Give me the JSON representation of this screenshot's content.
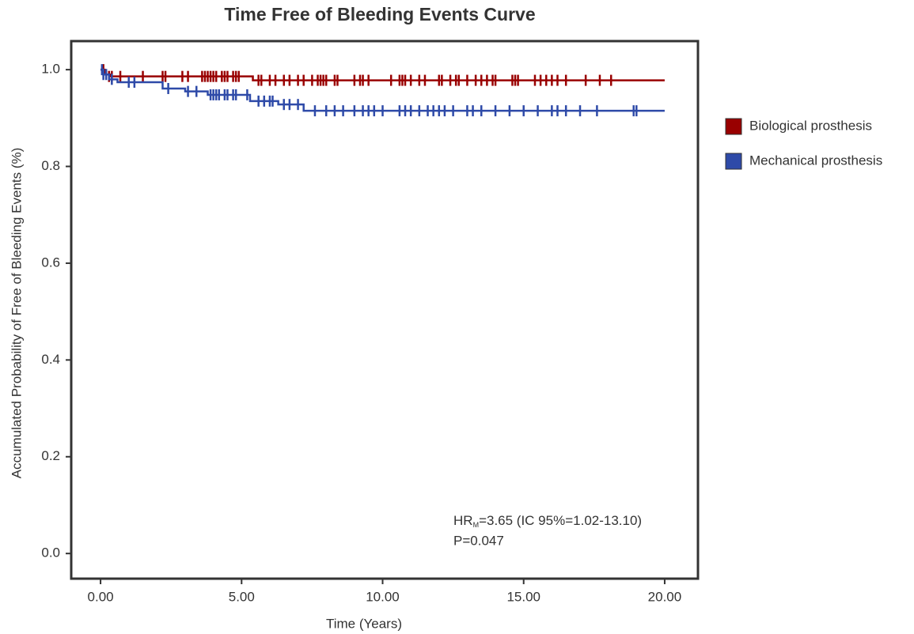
{
  "chart_data": {
    "type": "survival",
    "title": "Time Free of Bleeding Events Curve",
    "x_label": "Time (Years)",
    "y_label": "Accumulated Probability of Free of Bleeding Events (%)",
    "xlim": [
      -1.04,
      21.18
    ],
    "ylim": [
      -0.052,
      1.059
    ],
    "xticks": [
      {
        "value": 0,
        "label": "0.00"
      },
      {
        "value": 5,
        "label": "5.00"
      },
      {
        "value": 10,
        "label": "10.00"
      },
      {
        "value": 15,
        "label": "15.00"
      },
      {
        "value": 20,
        "label": "20.00"
      }
    ],
    "yticks": [
      {
        "value": 0,
        "label": "0.0"
      },
      {
        "value": 0.2,
        "label": "0.2"
      },
      {
        "value": 0.4,
        "label": "0.4"
      },
      {
        "value": 0.6,
        "label": "0.6"
      },
      {
        "value": 0.8,
        "label": "0.8"
      },
      {
        "value": 1,
        "label": "1.0"
      }
    ],
    "legend_position": "right",
    "annotation": {
      "hr": "HR",
      "hr_subscript": "M",
      "hr_text": "=3.65 (IC 95%=1.02-13.10)",
      "p_value": "P=0.047"
    },
    "series": [
      {
        "name": "Biological prosthesis",
        "color": "#990000",
        "x": [
          0,
          0.15,
          0.35,
          5.4,
          20
        ],
        "values": [
          1.0,
          0.99,
          0.986,
          0.978,
          0.978
        ],
        "censored_x": [
          0.1,
          0.3,
          0.4,
          0.7,
          1.5,
          2.2,
          2.3,
          2.9,
          3.1,
          3.6,
          3.7,
          3.8,
          3.9,
          4.0,
          4.1,
          4.3,
          4.4,
          4.5,
          4.7,
          4.8,
          4.9,
          5.6,
          5.7,
          6.0,
          6.2,
          6.5,
          6.7,
          7.0,
          7.2,
          7.5,
          7.7,
          7.8,
          7.9,
          8.0,
          8.3,
          8.4,
          9.0,
          9.2,
          9.3,
          9.5,
          10.3,
          10.6,
          10.7,
          10.8,
          11.0,
          11.3,
          11.5,
          12.0,
          12.1,
          12.4,
          12.6,
          12.7,
          13.0,
          13.3,
          13.5,
          13.7,
          13.9,
          14.0,
          14.6,
          14.7,
          14.8,
          15.4,
          15.6,
          15.8,
          16.0,
          16.2,
          16.5,
          17.2,
          17.7,
          18.1
        ],
        "censored_y": [
          1.0,
          0.986,
          0.986,
          0.986,
          0.986,
          0.986,
          0.986,
          0.986,
          0.986,
          0.986,
          0.986,
          0.986,
          0.986,
          0.986,
          0.986,
          0.986,
          0.986,
          0.986,
          0.986,
          0.986,
          0.986,
          0.978,
          0.978,
          0.978,
          0.978,
          0.978,
          0.978,
          0.978,
          0.978,
          0.978,
          0.978,
          0.978,
          0.978,
          0.978,
          0.978,
          0.978,
          0.978,
          0.978,
          0.978,
          0.978,
          0.978,
          0.978,
          0.978,
          0.978,
          0.978,
          0.978,
          0.978,
          0.978,
          0.978,
          0.978,
          0.978,
          0.978,
          0.978,
          0.978,
          0.978,
          0.978,
          0.978,
          0.978,
          0.978,
          0.978,
          0.978,
          0.978,
          0.978,
          0.978,
          0.978,
          0.978,
          0.978,
          0.978,
          0.978,
          0.978
        ]
      },
      {
        "name": "Mechanical prosthesis",
        "color": "#2e4aa8",
        "x": [
          0,
          0.1,
          0.3,
          0.6,
          2.2,
          3.0,
          3.8,
          5.3,
          6.3,
          7.2,
          20
        ],
        "values": [
          1.0,
          0.99,
          0.98,
          0.974,
          0.961,
          0.955,
          0.948,
          0.935,
          0.928,
          0.915,
          0.915
        ],
        "censored_x": [
          0.05,
          0.1,
          0.2,
          0.4,
          1.0,
          1.2,
          2.4,
          3.1,
          3.4,
          3.9,
          4.0,
          4.1,
          4.2,
          4.4,
          4.5,
          4.7,
          4.8,
          5.2,
          5.6,
          5.8,
          6.0,
          6.1,
          6.5,
          6.7,
          7.0,
          7.6,
          8.0,
          8.3,
          8.6,
          9.0,
          9.3,
          9.5,
          9.7,
          10.0,
          10.6,
          10.8,
          11.0,
          11.3,
          11.6,
          11.8,
          12.0,
          12.2,
          12.5,
          13.0,
          13.2,
          13.5,
          14.0,
          14.5,
          15.0,
          15.5,
          16.0,
          16.2,
          16.5,
          17.0,
          17.6,
          18.9,
          19.0
        ],
        "censored_y": [
          1.0,
          0.99,
          0.99,
          0.98,
          0.974,
          0.974,
          0.961,
          0.955,
          0.955,
          0.948,
          0.948,
          0.948,
          0.948,
          0.948,
          0.948,
          0.948,
          0.948,
          0.948,
          0.935,
          0.935,
          0.935,
          0.935,
          0.928,
          0.928,
          0.928,
          0.915,
          0.915,
          0.915,
          0.915,
          0.915,
          0.915,
          0.915,
          0.915,
          0.915,
          0.915,
          0.915,
          0.915,
          0.915,
          0.915,
          0.915,
          0.915,
          0.915,
          0.915,
          0.915,
          0.915,
          0.915,
          0.915,
          0.915,
          0.915,
          0.915,
          0.915,
          0.915,
          0.915,
          0.915,
          0.915,
          0.915,
          0.915
        ]
      }
    ]
  }
}
